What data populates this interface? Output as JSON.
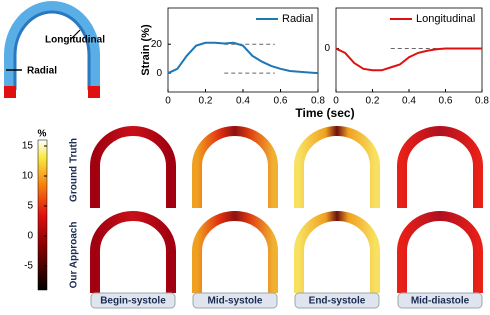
{
  "chart_data": [
    {
      "type": "line",
      "x": [
        0,
        0.05,
        0.1,
        0.15,
        0.2,
        0.25,
        0.3,
        0.35,
        0.4,
        0.45,
        0.5,
        0.55,
        0.6,
        0.65,
        0.7,
        0.75,
        0.8
      ],
      "series": [
        {
          "name": "Radial",
          "color": "#1f77b4",
          "values": [
            0,
            3,
            12,
            19,
            21,
            21,
            20.5,
            21,
            19,
            12,
            8,
            5,
            3,
            1.5,
            1,
            0.5,
            0
          ]
        }
      ],
      "xlim": [
        0,
        0.8
      ],
      "xticks": [
        0,
        0.2,
        0.4,
        0.6,
        0.8
      ],
      "ylim": [
        -13,
        45
      ],
      "yticks": [
        0,
        20
      ],
      "y_label": "Strain (%)",
      "x_label": "Time (sec)"
    },
    {
      "type": "line",
      "x": [
        0,
        0.05,
        0.1,
        0.15,
        0.2,
        0.25,
        0.3,
        0.35,
        0.4,
        0.45,
        0.5,
        0.55,
        0.6,
        0.65,
        0.7,
        0.75,
        0.8
      ],
      "series": [
        {
          "name": "Longitudinal",
          "color": "#e01010",
          "values": [
            0,
            -3,
            -10,
            -14,
            -15,
            -15,
            -13,
            -11,
            -6,
            -3,
            -1.5,
            -0.5,
            0,
            0,
            0,
            0,
            0
          ]
        }
      ],
      "xlim": [
        0,
        0.8
      ],
      "xticks": [
        0,
        0.2,
        0.4,
        0.6,
        0.8
      ],
      "ylim": [
        -30,
        28
      ],
      "yticks": [
        0
      ]
    }
  ],
  "diagram": {
    "labels": [
      "Longitudinal",
      "Radial"
    ]
  },
  "colorbar": {
    "label": "%",
    "lim": [
      -9,
      16
    ],
    "ticks": [
      -5,
      0,
      5,
      10,
      15
    ]
  },
  "rows": [
    "Ground Truth",
    "Our Approach"
  ],
  "columns": [
    "Begin-systole",
    "Mid-systole",
    "End-systole",
    "Mid-diastole"
  ]
}
